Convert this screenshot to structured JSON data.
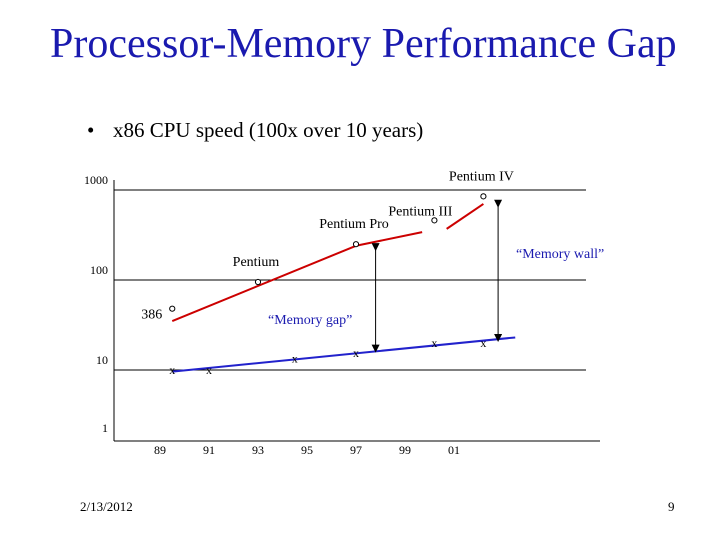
{
  "slide": {
    "title": "Processor-Memory Performance Gap",
    "bullet": "x86 CPU speed (100x over 10 years)",
    "date": "2/13/2012",
    "page_number": "9"
  },
  "colors": {
    "title": "#1a1aaf",
    "cpu_line": "#cc0000",
    "memory_line": "#2222cc",
    "annotation": "#1a1aaf"
  },
  "chart_data": {
    "type": "line",
    "y_scale": "log",
    "ylim": [
      1,
      1000
    ],
    "y_ticks": [
      "1000",
      "100",
      "10",
      "1"
    ],
    "y_tick_values": [
      1000,
      100,
      10,
      1
    ],
    "x_ticks": [
      "89",
      "91",
      "93",
      "95",
      "97",
      "99",
      "01"
    ],
    "x_tick_values": [
      89,
      91,
      93,
      95,
      97,
      99,
      101
    ],
    "grid": "horizontal at 1000, 100, 10",
    "series": [
      {
        "key": "cpu",
        "segments": [
          [
            [
              89.5,
              35
            ],
            [
              97,
              240
            ]
          ],
          [
            [
              97,
              240
            ],
            [
              99.7,
              340
            ]
          ],
          [
            [
              100.7,
              370
            ],
            [
              102.2,
              700
            ]
          ]
        ],
        "points": [
          {
            "label": "386",
            "x": 89.5,
            "y": 48
          },
          {
            "label": "Pentium",
            "x": 93,
            "y": 95
          },
          {
            "label": "Pentium Pro",
            "x": 97,
            "y": 250
          },
          {
            "label": "Pentium III",
            "x": 100.2,
            "y": 460
          },
          {
            "label": "Pentium IV",
            "x": 102.2,
            "y": 850
          }
        ]
      },
      {
        "key": "memory",
        "segments": [
          [
            [
              89.5,
              9.6
            ],
            [
              103.5,
              23
            ]
          ]
        ],
        "points": [
          {
            "label": "x",
            "x": 89.5,
            "y": 10
          },
          {
            "label": "x",
            "x": 91,
            "y": 10
          },
          {
            "label": "x",
            "x": 94.5,
            "y": 13.5
          },
          {
            "label": "x",
            "x": 97,
            "y": 15.5
          },
          {
            "label": "x",
            "x": 100.2,
            "y": 20
          },
          {
            "label": "x",
            "x": 102.2,
            "y": 20
          }
        ]
      }
    ],
    "annotations": [
      {
        "label": "“Memory gap”",
        "x": 97.8,
        "from": 16,
        "to": 250
      },
      {
        "label": "“Memory wall”",
        "x": 102.8,
        "from": 21,
        "to": 760
      }
    ]
  }
}
